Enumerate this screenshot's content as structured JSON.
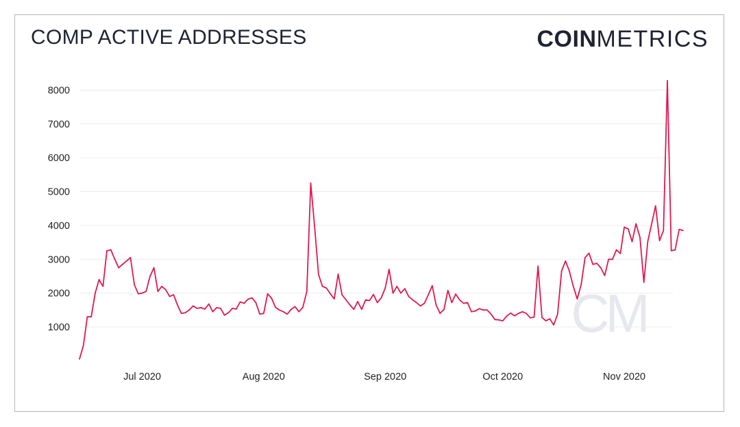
{
  "title": "COMP ACTIVE ADDRESSES",
  "logo": {
    "bold": "COIN",
    "light": "METRICS"
  },
  "watermark": {
    "text": "CM",
    "icon": "coinmetrics-watermark-icon"
  },
  "colors": {
    "line": "#e0184d",
    "grid": "#ececec",
    "text": "#1f2233",
    "watermark": "#e6e8ee"
  },
  "chart_data": {
    "type": "line",
    "title": "COMP ACTIVE ADDRESSES",
    "xlabel": "",
    "ylabel": "",
    "ylim": [
      0,
      8500
    ],
    "yticks": [
      1000,
      2000,
      3000,
      4000,
      5000,
      6000,
      7000,
      8000
    ],
    "grid": true,
    "legend": "none",
    "xticks": [
      {
        "label": "Jul 2020",
        "date": "2020-07-01"
      },
      {
        "label": "Aug 2020",
        "date": "2020-08-01"
      },
      {
        "label": "Sep 2020",
        "date": "2020-09-01"
      },
      {
        "label": "Oct 2020",
        "date": "2020-10-01"
      },
      {
        "label": "Nov 2020",
        "date": "2020-11-01"
      }
    ],
    "series": [
      {
        "x": [
          "2020-06-15",
          "2020-06-16",
          "2020-06-17",
          "2020-06-18",
          "2020-06-19",
          "2020-06-20",
          "2020-06-21",
          "2020-06-22",
          "2020-06-23",
          "2020-06-24",
          "2020-06-25",
          "2020-06-26",
          "2020-06-27",
          "2020-06-28",
          "2020-06-29",
          "2020-06-30",
          "2020-07-01",
          "2020-07-02",
          "2020-07-03",
          "2020-07-04",
          "2020-07-05",
          "2020-07-06",
          "2020-07-07",
          "2020-07-08",
          "2020-07-09",
          "2020-07-10",
          "2020-07-11",
          "2020-07-12",
          "2020-07-13",
          "2020-07-14",
          "2020-07-15",
          "2020-07-16",
          "2020-07-17",
          "2020-07-18",
          "2020-07-19",
          "2020-07-20",
          "2020-07-21",
          "2020-07-22",
          "2020-07-23",
          "2020-07-24",
          "2020-07-25",
          "2020-07-26",
          "2020-07-27",
          "2020-07-28",
          "2020-07-29",
          "2020-07-30",
          "2020-07-31",
          "2020-08-01",
          "2020-08-02",
          "2020-08-03",
          "2020-08-04",
          "2020-08-05",
          "2020-08-06",
          "2020-08-07",
          "2020-08-08",
          "2020-08-09",
          "2020-08-10",
          "2020-08-11",
          "2020-08-12",
          "2020-08-13",
          "2020-08-14",
          "2020-08-15",
          "2020-08-16",
          "2020-08-17",
          "2020-08-18",
          "2020-08-19",
          "2020-08-20",
          "2020-08-21",
          "2020-08-22",
          "2020-08-23",
          "2020-08-24",
          "2020-08-25",
          "2020-08-26",
          "2020-08-27",
          "2020-08-28",
          "2020-08-29",
          "2020-08-30",
          "2020-08-31",
          "2020-09-01",
          "2020-09-02",
          "2020-09-03",
          "2020-09-04",
          "2020-09-05",
          "2020-09-06",
          "2020-09-07",
          "2020-09-08",
          "2020-09-09",
          "2020-09-10",
          "2020-09-11",
          "2020-09-12",
          "2020-09-13",
          "2020-09-14",
          "2020-09-15",
          "2020-09-16",
          "2020-09-17",
          "2020-09-18",
          "2020-09-19",
          "2020-09-20",
          "2020-09-21",
          "2020-09-22",
          "2020-09-23",
          "2020-09-24",
          "2020-09-25",
          "2020-09-26",
          "2020-09-27",
          "2020-09-28",
          "2020-09-29",
          "2020-09-30",
          "2020-10-01",
          "2020-10-02",
          "2020-10-03",
          "2020-10-04",
          "2020-10-05",
          "2020-10-06",
          "2020-10-07",
          "2020-10-08",
          "2020-10-09",
          "2020-10-10",
          "2020-10-11",
          "2020-10-12",
          "2020-10-13",
          "2020-10-14",
          "2020-10-15",
          "2020-10-16",
          "2020-10-17",
          "2020-10-18",
          "2020-10-19",
          "2020-10-20",
          "2020-10-21",
          "2020-10-22",
          "2020-10-23",
          "2020-10-24",
          "2020-10-25",
          "2020-10-26",
          "2020-10-27",
          "2020-10-28",
          "2020-10-29",
          "2020-10-30",
          "2020-10-31",
          "2020-11-01",
          "2020-11-02",
          "2020-11-03",
          "2020-11-04",
          "2020-11-05",
          "2020-11-06",
          "2020-11-07",
          "2020-11-08",
          "2020-11-09",
          "2020-11-10",
          "2020-11-11",
          "2020-11-12",
          "2020-11-13",
          "2020-11-14",
          "2020-11-15",
          "2020-11-16"
        ],
        "values": [
          50,
          450,
          1300,
          1300,
          2000,
          2400,
          2200,
          3250,
          3280,
          3000,
          2750,
          2850,
          2950,
          3050,
          2250,
          1980,
          2000,
          2050,
          2500,
          2750,
          2050,
          2200,
          2100,
          1900,
          1950,
          1650,
          1400,
          1420,
          1500,
          1620,
          1550,
          1570,
          1530,
          1680,
          1450,
          1570,
          1550,
          1350,
          1420,
          1550,
          1530,
          1740,
          1700,
          1820,
          1860,
          1720,
          1380,
          1400,
          1980,
          1850,
          1580,
          1500,
          1450,
          1380,
          1520,
          1600,
          1450,
          1580,
          2050,
          5250,
          3950,
          2550,
          2200,
          2150,
          1980,
          1830,
          2560,
          1950,
          1800,
          1650,
          1520,
          1750,
          1520,
          1800,
          1780,
          1960,
          1720,
          1860,
          2150,
          2700,
          2000,
          2200,
          2000,
          2130,
          1900,
          1800,
          1720,
          1620,
          1700,
          1950,
          2220,
          1650,
          1400,
          1520,
          2080,
          1720,
          1970,
          1800,
          1700,
          1720,
          1450,
          1470,
          1540,
          1500,
          1500,
          1380,
          1220,
          1210,
          1180,
          1320,
          1410,
          1330,
          1400,
          1450,
          1400,
          1270,
          1290,
          2800,
          1280,
          1180,
          1240,
          1060,
          1380,
          2650,
          2950,
          2650,
          2200,
          1830,
          2250,
          3050,
          3180,
          2850,
          2880,
          2750,
          2520,
          3000,
          3000,
          3280,
          3170,
          3950,
          3900,
          3520,
          4050,
          3650,
          2320,
          3530,
          4050,
          4580,
          3550,
          3850,
          8280,
          3250,
          3280,
          3880,
          3850
        ]
      }
    ]
  }
}
